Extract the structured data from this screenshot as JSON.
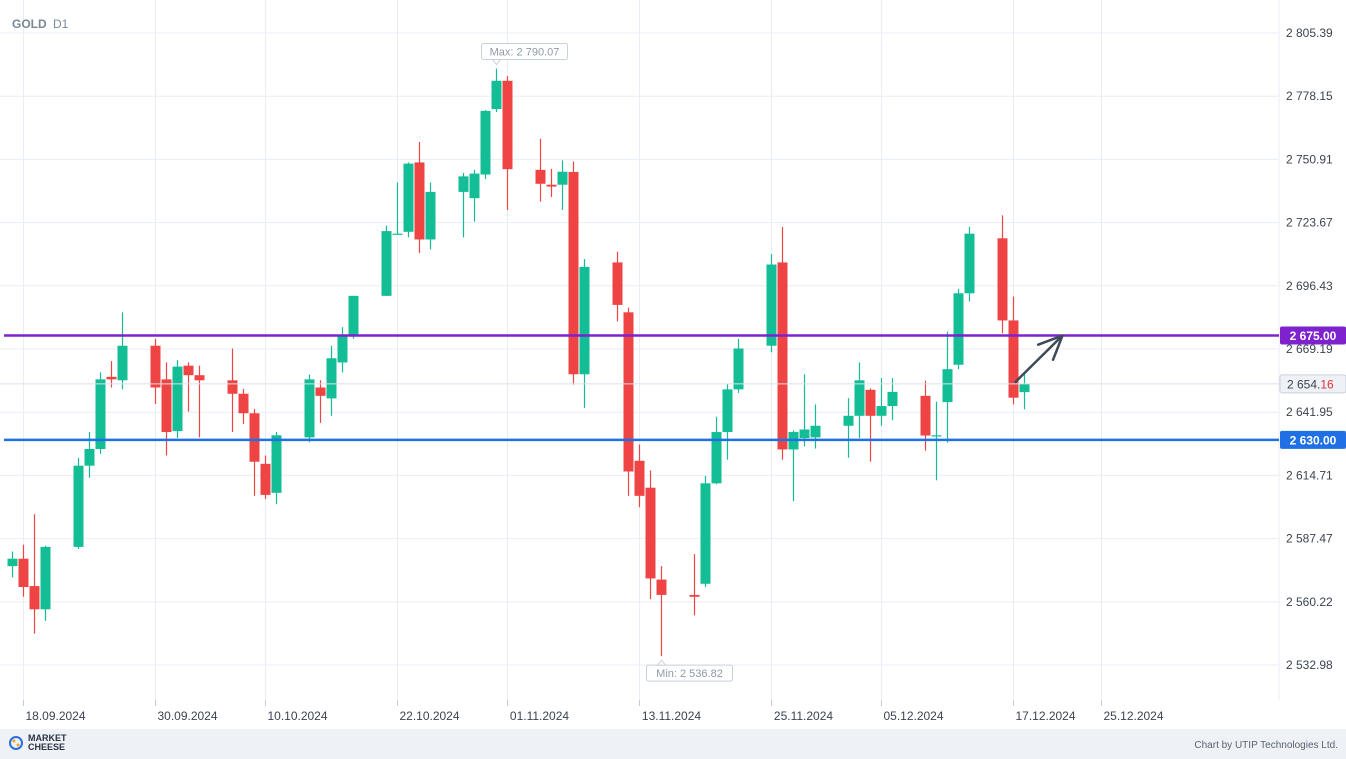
{
  "header": {
    "symbol": "GOLD",
    "timeframe": "D1"
  },
  "footer": {
    "brand_line1": "MARKET",
    "brand_line2": "CHEESE",
    "credit": "Chart by UTIP Technologies Ltd."
  },
  "colors": {
    "up": "#13bd95",
    "down": "#ef4444",
    "resistance": "#7e22ce",
    "support": "#1f6fe5",
    "arrow": "#3e4a5a"
  },
  "chart_data": {
    "type": "candlestick",
    "symbol": "GOLD",
    "timeframe": "D1",
    "y_ticks": [
      "2 805.39",
      "2 778.15",
      "2 750.91",
      "2 723.67",
      "2 696.43",
      "2 669.19",
      "2 641.95",
      "2 614.71",
      "2 587.47",
      "2 560.22",
      "2 532.98"
    ],
    "x_ticks": [
      "18.09.2024",
      "30.09.2024",
      "10.10.2024",
      "22.10.2024",
      "01.11.2024",
      "13.11.2024",
      "25.11.2024",
      "05.12.2024",
      "17.12.2024",
      "25.12.2024"
    ],
    "ylim": [
      2528,
      2813
    ],
    "max_label": "Max: 2 790.07",
    "min_label": "Min: 2 536.82",
    "current_price": {
      "main": "2 654.",
      "tail": "16",
      "value": 2654.16
    },
    "levels": [
      {
        "label": "2 675.00",
        "value": 2675.0,
        "role": "resistance"
      },
      {
        "label": "2 630.00",
        "value": 2630.0,
        "role": "support"
      }
    ],
    "arrow": {
      "from": {
        "date": "2024-12-17",
        "price": 2655
      },
      "to": {
        "date": "2024-12-20",
        "price": 2675
      }
    },
    "candles": [
      {
        "date": "2024-09-17",
        "o": 2575.6,
        "h": 2581.9,
        "l": 2570.7,
        "c": 2578.8
      },
      {
        "date": "2024-09-18",
        "o": 2578.8,
        "h": 2584.8,
        "l": 2562.4,
        "c": 2566.6
      },
      {
        "date": "2024-09-19",
        "o": 2567.0,
        "h": 2598.0,
        "l": 2546.5,
        "c": 2557.0
      },
      {
        "date": "2024-09-20",
        "o": 2557.0,
        "h": 2584.4,
        "l": 2552.0,
        "c": 2583.9
      },
      {
        "date": "2024-09-23",
        "o": 2583.9,
        "h": 2622.3,
        "l": 2583.0,
        "c": 2618.9
      },
      {
        "date": "2024-09-24",
        "o": 2618.9,
        "h": 2633.4,
        "l": 2613.7,
        "c": 2626.1
      },
      {
        "date": "2024-09-25",
        "o": 2626.1,
        "h": 2659.1,
        "l": 2624.0,
        "c": 2656.1
      },
      {
        "date": "2024-09-26",
        "o": 2657.2,
        "h": 2664.0,
        "l": 2652.6,
        "c": 2656.1
      },
      {
        "date": "2024-09-27",
        "o": 2655.7,
        "h": 2685.0,
        "l": 2651.8,
        "c": 2670.6
      },
      {
        "date": "2024-09-30",
        "o": 2670.6,
        "h": 2673.6,
        "l": 2645.5,
        "c": 2652.6
      },
      {
        "date": "2024-10-01",
        "o": 2656.1,
        "h": 2663.4,
        "l": 2623.3,
        "c": 2633.4
      },
      {
        "date": "2024-10-02",
        "o": 2633.8,
        "h": 2664.4,
        "l": 2630.8,
        "c": 2661.6
      },
      {
        "date": "2024-10-03",
        "o": 2662.0,
        "h": 2663.4,
        "l": 2642.2,
        "c": 2657.9
      },
      {
        "date": "2024-10-04",
        "o": 2657.9,
        "h": 2662.0,
        "l": 2631.1,
        "c": 2655.7
      },
      {
        "date": "2024-10-07",
        "o": 2655.7,
        "h": 2669.4,
        "l": 2633.4,
        "c": 2649.9
      },
      {
        "date": "2024-10-08",
        "o": 2649.9,
        "h": 2652.0,
        "l": 2636.9,
        "c": 2641.5
      },
      {
        "date": "2024-10-09",
        "o": 2641.5,
        "h": 2643.4,
        "l": 2605.9,
        "c": 2620.6
      },
      {
        "date": "2024-10-10",
        "o": 2619.7,
        "h": 2623.3,
        "l": 2604.5,
        "c": 2606.3
      },
      {
        "date": "2024-10-11",
        "o": 2607.2,
        "h": 2633.4,
        "l": 2602.3,
        "c": 2632.0
      },
      {
        "date": "2024-10-14",
        "o": 2631.1,
        "h": 2658.1,
        "l": 2629.0,
        "c": 2656.1
      },
      {
        "date": "2024-10-15",
        "o": 2652.6,
        "h": 2655.7,
        "l": 2637.3,
        "c": 2649.0
      },
      {
        "date": "2024-10-16",
        "o": 2647.9,
        "h": 2670.6,
        "l": 2640.4,
        "c": 2665.2
      },
      {
        "date": "2024-10-17",
        "o": 2663.4,
        "h": 2678.6,
        "l": 2659.1,
        "c": 2674.6
      },
      {
        "date": "2024-10-18",
        "o": 2674.6,
        "h": 2692.1,
        "l": 2673.6,
        "c": 2692.1
      },
      {
        "date": "2024-10-21",
        "o": 2692.1,
        "h": 2722.4,
        "l": 2692.1,
        "c": 2720.0
      },
      {
        "date": "2024-10-22",
        "o": 2718.9,
        "h": 2740.9,
        "l": 2718.6,
        "c": 2718.9
      },
      {
        "date": "2024-10-23",
        "o": 2719.7,
        "h": 2749.6,
        "l": 2717.3,
        "c": 2749.1
      },
      {
        "date": "2024-10-24",
        "o": 2749.6,
        "h": 2758.4,
        "l": 2710.6,
        "c": 2716.4
      },
      {
        "date": "2024-10-25",
        "o": 2716.4,
        "h": 2741.0,
        "l": 2712.1,
        "c": 2736.9
      },
      {
        "date": "2024-10-28",
        "o": 2736.9,
        "h": 2745.1,
        "l": 2717.3,
        "c": 2743.6
      },
      {
        "date": "2024-10-29",
        "o": 2734.2,
        "h": 2746.4,
        "l": 2724.1,
        "c": 2744.8
      },
      {
        "date": "2024-10-30",
        "o": 2744.4,
        "h": 2772.2,
        "l": 2742.5,
        "c": 2771.8
      },
      {
        "date": "2024-10-31",
        "o": 2772.6,
        "h": 2790.07,
        "l": 2771.3,
        "c": 2784.8
      },
      {
        "date": "2024-11-01",
        "o": 2784.8,
        "h": 2786.8,
        "l": 2729.1,
        "c": 2746.7
      },
      {
        "date": "2024-11-04",
        "o": 2746.4,
        "h": 2759.8,
        "l": 2732.7,
        "c": 2740.4
      },
      {
        "date": "2024-11-05",
        "o": 2740.0,
        "h": 2746.8,
        "l": 2734.7,
        "c": 2739.2
      },
      {
        "date": "2024-11-06",
        "o": 2740.0,
        "h": 2750.5,
        "l": 2729.1,
        "c": 2745.6
      },
      {
        "date": "2024-11-07",
        "o": 2745.5,
        "h": 2750.0,
        "l": 2653.8,
        "c": 2658.3
      },
      {
        "date": "2024-11-08",
        "o": 2658.3,
        "h": 2708.0,
        "l": 2643.8,
        "c": 2704.6
      },
      {
        "date": "2024-11-11",
        "o": 2706.5,
        "h": 2711.1,
        "l": 2681.1,
        "c": 2688.2
      },
      {
        "date": "2024-11-12",
        "o": 2685.0,
        "h": 2687.0,
        "l": 2605.9,
        "c": 2616.4
      },
      {
        "date": "2024-11-13",
        "o": 2621.0,
        "h": 2628.0,
        "l": 2601.0,
        "c": 2605.9
      },
      {
        "date": "2024-11-14",
        "o": 2609.4,
        "h": 2616.8,
        "l": 2561.4,
        "c": 2570.3
      },
      {
        "date": "2024-11-15",
        "o": 2569.8,
        "h": 2575.6,
        "l": 2536.82,
        "c": 2563.2
      },
      {
        "date": "2024-11-18",
        "o": 2563.2,
        "h": 2580.8,
        "l": 2554.4,
        "c": 2562.4
      },
      {
        "date": "2024-11-19",
        "o": 2568.0,
        "h": 2614.5,
        "l": 2566.6,
        "c": 2611.3
      },
      {
        "date": "2024-11-20",
        "o": 2611.3,
        "h": 2640.0,
        "l": 2610.9,
        "c": 2633.4
      },
      {
        "date": "2024-11-21",
        "o": 2633.4,
        "h": 2654.2,
        "l": 2621.5,
        "c": 2651.8
      },
      {
        "date": "2024-11-22",
        "o": 2651.8,
        "h": 2673.6,
        "l": 2650.3,
        "c": 2669.4
      },
      {
        "date": "2024-11-25",
        "o": 2670.6,
        "h": 2710.1,
        "l": 2667.8,
        "c": 2705.6
      },
      {
        "date": "2024-11-26",
        "o": 2706.5,
        "h": 2721.8,
        "l": 2621.5,
        "c": 2625.9
      },
      {
        "date": "2024-11-27",
        "o": 2625.9,
        "h": 2634.1,
        "l": 2603.6,
        "c": 2633.4
      },
      {
        "date": "2024-11-28",
        "o": 2630.8,
        "h": 2658.3,
        "l": 2627.2,
        "c": 2634.5
      },
      {
        "date": "2024-11-29",
        "o": 2631.1,
        "h": 2645.3,
        "l": 2626.3,
        "c": 2636.1
      },
      {
        "date": "2024-12-02",
        "o": 2636.1,
        "h": 2648.0,
        "l": 2622.3,
        "c": 2640.4
      },
      {
        "date": "2024-12-03",
        "o": 2640.4,
        "h": 2663.4,
        "l": 2630.8,
        "c": 2655.7
      },
      {
        "date": "2024-12-04",
        "o": 2651.6,
        "h": 2652.2,
        "l": 2620.6,
        "c": 2640.4
      },
      {
        "date": "2024-12-05",
        "o": 2640.4,
        "h": 2656.6,
        "l": 2636.1,
        "c": 2644.6
      },
      {
        "date": "2024-12-06",
        "o": 2644.6,
        "h": 2656.6,
        "l": 2638.5,
        "c": 2650.7
      },
      {
        "date": "2024-12-09",
        "o": 2649.0,
        "h": 2655.5,
        "l": 2625.4,
        "c": 2631.9
      },
      {
        "date": "2024-12-10",
        "o": 2632.0,
        "h": 2646.5,
        "l": 2612.6,
        "c": 2632.0
      },
      {
        "date": "2024-12-11",
        "o": 2646.3,
        "h": 2676.7,
        "l": 2628.8,
        "c": 2660.5
      },
      {
        "date": "2024-12-12",
        "o": 2662.4,
        "h": 2695.1,
        "l": 2660.5,
        "c": 2693.2
      },
      {
        "date": "2024-12-13",
        "o": 2693.2,
        "h": 2721.8,
        "l": 2689.7,
        "c": 2718.9
      },
      {
        "date": "2024-12-16",
        "o": 2716.9,
        "h": 2726.8,
        "l": 2676.0,
        "c": 2681.5
      },
      {
        "date": "2024-12-17",
        "o": 2681.5,
        "h": 2691.8,
        "l": 2645.3,
        "c": 2648.2
      },
      {
        "date": "2024-12-18",
        "o": 2650.6,
        "h": 2658.9,
        "l": 2643.2,
        "c": 2654.16
      }
    ]
  }
}
